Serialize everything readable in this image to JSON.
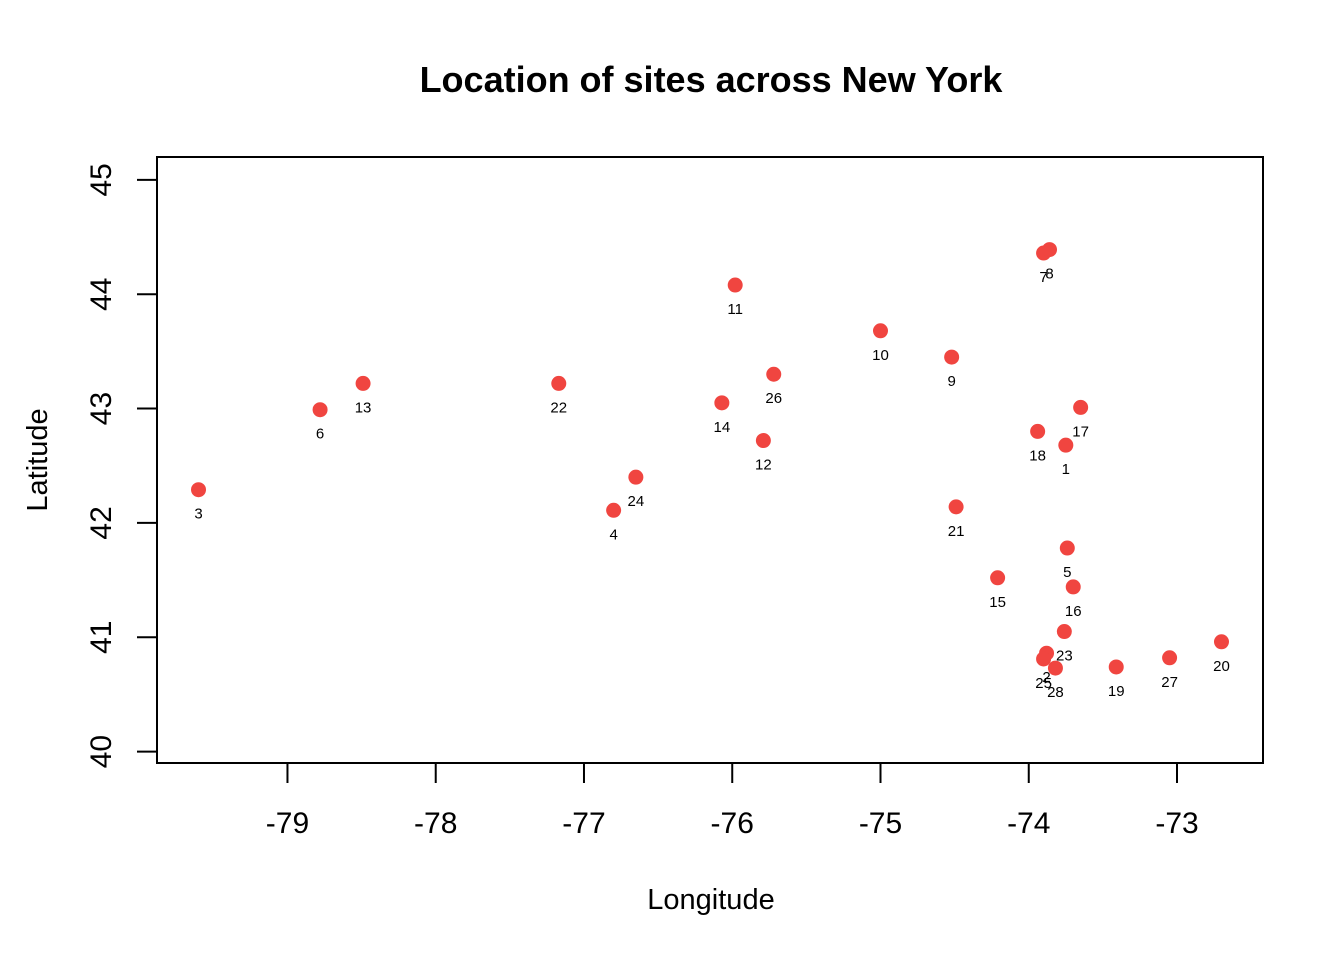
{
  "chart_data": {
    "type": "scatter",
    "title": "Location of sites across New York",
    "xlabel": "Longitude",
    "ylabel": "Latitude",
    "xlim": [
      -79.88,
      -72.42
    ],
    "ylim": [
      39.9,
      45.2
    ],
    "xticks": [
      -79,
      -78,
      -77,
      -76,
      -75,
      -74,
      -73
    ],
    "yticks": [
      40,
      41,
      42,
      43,
      44,
      45
    ],
    "grid": false,
    "point_color": "#f04540",
    "points": [
      {
        "label": "1",
        "x": -73.75,
        "y": 42.68
      },
      {
        "label": "2",
        "x": -73.88,
        "y": 40.86
      },
      {
        "label": "3",
        "x": -79.6,
        "y": 42.29
      },
      {
        "label": "4",
        "x": -76.8,
        "y": 42.11
      },
      {
        "label": "5",
        "x": -73.74,
        "y": 41.78
      },
      {
        "label": "6",
        "x": -78.78,
        "y": 42.99
      },
      {
        "label": "7",
        "x": -73.9,
        "y": 44.36
      },
      {
        "label": "8",
        "x": -73.86,
        "y": 44.39
      },
      {
        "label": "9",
        "x": -74.52,
        "y": 43.45
      },
      {
        "label": "10",
        "x": -75.0,
        "y": 43.68
      },
      {
        "label": "11",
        "x": -75.98,
        "y": 44.08
      },
      {
        "label": "12",
        "x": -75.79,
        "y": 42.72
      },
      {
        "label": "13",
        "x": -78.49,
        "y": 43.22
      },
      {
        "label": "14",
        "x": -76.07,
        "y": 43.05
      },
      {
        "label": "15",
        "x": -74.21,
        "y": 41.52
      },
      {
        "label": "16",
        "x": -73.7,
        "y": 41.44
      },
      {
        "label": "17",
        "x": -73.65,
        "y": 43.01
      },
      {
        "label": "18",
        "x": -73.94,
        "y": 42.8
      },
      {
        "label": "19",
        "x": -73.41,
        "y": 40.74
      },
      {
        "label": "20",
        "x": -72.7,
        "y": 40.96
      },
      {
        "label": "21",
        "x": -74.49,
        "y": 42.14
      },
      {
        "label": "22",
        "x": -77.17,
        "y": 43.22
      },
      {
        "label": "23",
        "x": -73.76,
        "y": 41.05
      },
      {
        "label": "24",
        "x": -76.65,
        "y": 42.4
      },
      {
        "label": "25",
        "x": -73.9,
        "y": 40.81
      },
      {
        "label": "26",
        "x": -75.72,
        "y": 43.3
      },
      {
        "label": "27",
        "x": -73.05,
        "y": 40.82
      },
      {
        "label": "28",
        "x": -73.82,
        "y": 40.73
      }
    ]
  }
}
